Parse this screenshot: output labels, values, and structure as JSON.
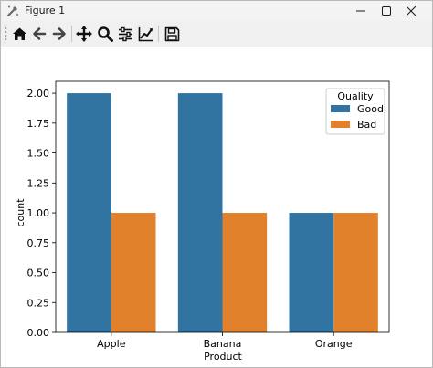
{
  "window": {
    "title": "Figure 1"
  },
  "toolbar": {
    "buttons": [
      {
        "name": "home",
        "icon": "home-icon"
      },
      {
        "name": "back",
        "icon": "arrow-left-icon"
      },
      {
        "name": "forward",
        "icon": "arrow-right-icon"
      },
      {
        "name": "pan",
        "icon": "move-icon"
      },
      {
        "name": "zoom",
        "icon": "magnifier-icon"
      },
      {
        "name": "subplots",
        "icon": "sliders-icon"
      },
      {
        "name": "customize",
        "icon": "line-chart-icon"
      },
      {
        "name": "save",
        "icon": "floppy-disk-icon"
      }
    ]
  },
  "chart_data": {
    "type": "bar",
    "categories": [
      "Apple",
      "Banana",
      "Orange"
    ],
    "series": [
      {
        "name": "Good",
        "values": [
          2,
          2,
          1
        ],
        "color": "#3274a1"
      },
      {
        "name": "Bad",
        "values": [
          1,
          1,
          1
        ],
        "color": "#e1812c"
      }
    ],
    "xlabel": "Product",
    "ylabel": "count",
    "ylim": [
      0,
      2.1
    ],
    "yticks": [
      "0.00",
      "0.25",
      "0.50",
      "0.75",
      "1.00",
      "1.25",
      "1.50",
      "1.75",
      "2.00"
    ],
    "ytick_values": [
      0,
      0.25,
      0.5,
      0.75,
      1.0,
      1.25,
      1.5,
      1.75,
      2.0
    ],
    "legend": {
      "title": "Quality",
      "placement": "top-right"
    },
    "grid": false
  }
}
